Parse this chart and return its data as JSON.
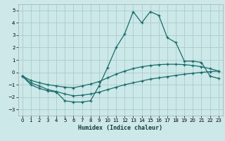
{
  "title": "",
  "xlabel": "Humidex (Indice chaleur)",
  "background_color": "#cce8e8",
  "grid_color": "#aacccc",
  "line_color": "#1a6b6b",
  "x_ticks": [
    0,
    1,
    2,
    3,
    4,
    5,
    6,
    7,
    8,
    9,
    10,
    11,
    12,
    13,
    14,
    15,
    16,
    17,
    18,
    19,
    20,
    21,
    22,
    23
  ],
  "ylim": [
    -3.5,
    5.5
  ],
  "xlim": [
    -0.5,
    23.5
  ],
  "yticks": [
    -3,
    -2,
    -1,
    0,
    1,
    2,
    3,
    4,
    5
  ],
  "series1_x": [
    0,
    1,
    2,
    3,
    4,
    5,
    6,
    7,
    8,
    9,
    10,
    11,
    12,
    13,
    14,
    15,
    16,
    17,
    18,
    19,
    20,
    21,
    22,
    23
  ],
  "series1_y": [
    -0.3,
    -1.0,
    -1.3,
    -1.5,
    -1.6,
    -2.3,
    -2.4,
    -2.4,
    -2.3,
    -1.1,
    0.4,
    2.0,
    3.1,
    4.9,
    4.0,
    4.9,
    4.6,
    2.8,
    2.4,
    0.9,
    0.9,
    0.8,
    -0.3,
    -0.5
  ],
  "series2_x": [
    0,
    1,
    2,
    3,
    4,
    5,
    6,
    7,
    8,
    9,
    10,
    11,
    12,
    13,
    14,
    15,
    16,
    17,
    18,
    19,
    20,
    21,
    22,
    23
  ],
  "series2_y": [
    -0.3,
    -0.65,
    -0.85,
    -1.0,
    -1.1,
    -1.2,
    -1.25,
    -1.1,
    -0.95,
    -0.75,
    -0.45,
    -0.15,
    0.1,
    0.3,
    0.45,
    0.55,
    0.62,
    0.65,
    0.65,
    0.62,
    0.55,
    0.45,
    0.3,
    0.1
  ],
  "series3_x": [
    0,
    1,
    2,
    3,
    4,
    5,
    6,
    7,
    8,
    9,
    10,
    11,
    12,
    13,
    14,
    15,
    16,
    17,
    18,
    19,
    20,
    21,
    22,
    23
  ],
  "series3_y": [
    -0.3,
    -0.85,
    -1.1,
    -1.4,
    -1.55,
    -1.75,
    -1.9,
    -1.85,
    -1.75,
    -1.6,
    -1.4,
    -1.2,
    -1.0,
    -0.85,
    -0.7,
    -0.55,
    -0.45,
    -0.35,
    -0.25,
    -0.15,
    -0.08,
    0.0,
    0.05,
    0.1
  ]
}
